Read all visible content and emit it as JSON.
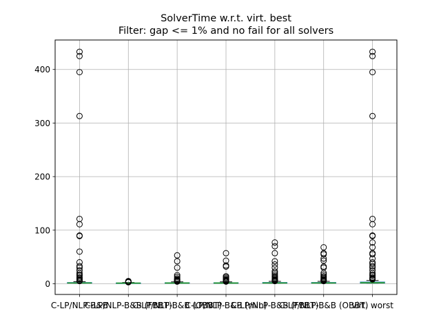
{
  "chart_data": {
    "type": "box",
    "title": "SolverTime w.r.t. virt. best",
    "subtitle": "Filter: gap <= 1% and no fail for all solvers",
    "xlabel": "",
    "ylabel": "",
    "ylim": [
      -20,
      455
    ],
    "yticks": [
      0,
      100,
      200,
      300,
      400
    ],
    "grid": true,
    "colors": {
      "box": "#1f77b4",
      "median": "#2ca02c",
      "grid": "#b0b0b0",
      "outlier": "#000000"
    },
    "categories": [
      "C-LP/NLP-B&B",
      "C-LP/NLP-B&B (FBBT)",
      "C-LP/NLP-B&B (OBBT)",
      "C-LP/NLP-B&B (min)",
      "C-LP/NLP-B&B (FBBT)",
      "C-LP/NLP-B&B (OBBT)",
      "virt. worst"
    ],
    "tick_labels": [
      "C-LP/NLP-B&B",
      "C-LP/NLP-B&B (FBBT)",
      "C-LP/NLP-B&B (OBBT)",
      "C-LP/NLP-B&B (min)",
      "C-LP/NLP-B&B (FBBT)",
      "C-LP/NLP-B&B (OBBT)",
      "virt. worst"
    ],
    "series": [
      {
        "q1": 1.0,
        "median": 1.4,
        "q3": 2.3,
        "whisker_low": 1.0,
        "whisker_high": 4.0,
        "outliers": [
          433,
          425,
          395,
          313,
          121,
          111,
          90,
          89,
          60,
          40,
          33,
          30,
          25,
          20,
          17,
          15,
          12,
          10,
          8,
          6,
          5
        ]
      },
      {
        "q1": 1.0,
        "median": 1.2,
        "q3": 1.6,
        "whisker_low": 1.0,
        "whisker_high": 2.3,
        "outliers": [
          5,
          4.5,
          4,
          3.6,
          3.2,
          3,
          2.8
        ]
      },
      {
        "q1": 1.0,
        "median": 1.3,
        "q3": 2.0,
        "whisker_low": 1.0,
        "whisker_high": 3.5,
        "outliers": [
          53,
          42,
          30,
          16,
          13,
          10,
          8,
          7,
          6,
          5,
          4.5,
          4
        ]
      },
      {
        "q1": 1.0,
        "median": 1.3,
        "q3": 2.0,
        "whisker_low": 1.0,
        "whisker_high": 3.5,
        "outliers": [
          57,
          43,
          34,
          32,
          14,
          12,
          10,
          8,
          7,
          6,
          5,
          4.5,
          4
        ]
      },
      {
        "q1": 1.0,
        "median": 1.4,
        "q3": 2.4,
        "whisker_low": 1.0,
        "whisker_high": 4.5,
        "outliers": [
          77,
          70,
          57,
          42,
          36,
          30,
          23,
          20,
          17,
          14,
          12,
          10,
          8,
          7,
          6,
          5
        ]
      },
      {
        "q1": 1.0,
        "median": 1.4,
        "q3": 2.4,
        "whisker_low": 1.0,
        "whisker_high": 4.5,
        "outliers": [
          68,
          57,
          55,
          47,
          43,
          32,
          30,
          20,
          17,
          14,
          12,
          10,
          8,
          7,
          6,
          5
        ]
      },
      {
        "q1": 1.1,
        "median": 1.8,
        "q3": 3.2,
        "whisker_low": 1.0,
        "whisker_high": 6.0,
        "outliers": [
          433,
          425,
          395,
          313,
          121,
          111,
          90,
          89,
          77,
          68,
          57,
          55,
          47,
          40,
          37,
          33,
          30,
          25,
          20,
          17,
          15,
          12,
          10,
          9,
          8
        ]
      }
    ]
  }
}
